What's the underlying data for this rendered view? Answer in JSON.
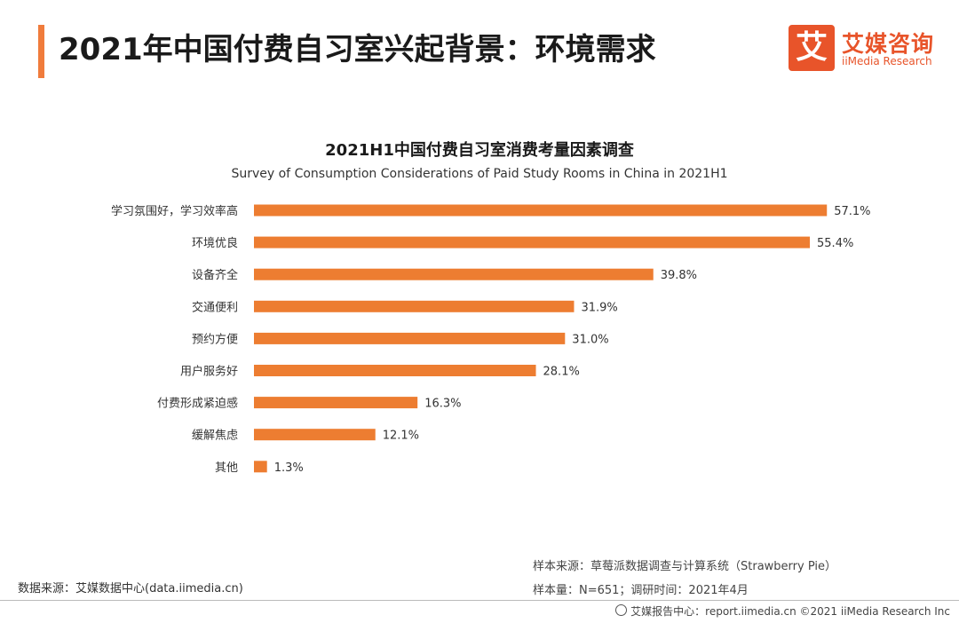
{
  "header": {
    "title": "2021年中国付费自习室兴起背景：环境需求",
    "accent_color": "#f07c3c"
  },
  "logo": {
    "mark": "艾",
    "name_cn": "艾媒咨询",
    "name_en": "iiMedia Research",
    "color": "#e8542a"
  },
  "chart_data": {
    "type": "bar",
    "orientation": "horizontal",
    "title": "2021H1中国付费自习室消费考量因素调查",
    "subtitle": "Survey of Consumption Considerations of Paid Study Rooms in China in 2021H1",
    "categories": [
      "学习氛围好，学习效率高",
      "环境优良",
      "设备齐全",
      "交通便利",
      "预约方便",
      "用户服务好",
      "付费形成紧迫感",
      "缓解焦虑",
      "其他"
    ],
    "values": [
      57.1,
      55.4,
      39.8,
      31.9,
      31.0,
      28.1,
      16.3,
      12.1,
      1.3
    ],
    "value_labels": [
      "57.1%",
      "55.4%",
      "39.8%",
      "31.9%",
      "31.0%",
      "28.1%",
      "16.3%",
      "12.1%",
      "1.3%"
    ],
    "unit": "%",
    "bar_color": "#ed7d31",
    "grid": false,
    "legend": "none"
  },
  "footer": {
    "source_left": "数据来源：艾媒数据中心(data.iimedia.cn)",
    "sample_source": "样本来源：草莓派数据调查与计算系统（Strawberry Pie）",
    "sample_info": "样本量：N=651；调研时间：2021年4月",
    "bottom": "艾媒报告中心：report.iimedia.cn  ©2021  iiMedia Research  Inc"
  }
}
